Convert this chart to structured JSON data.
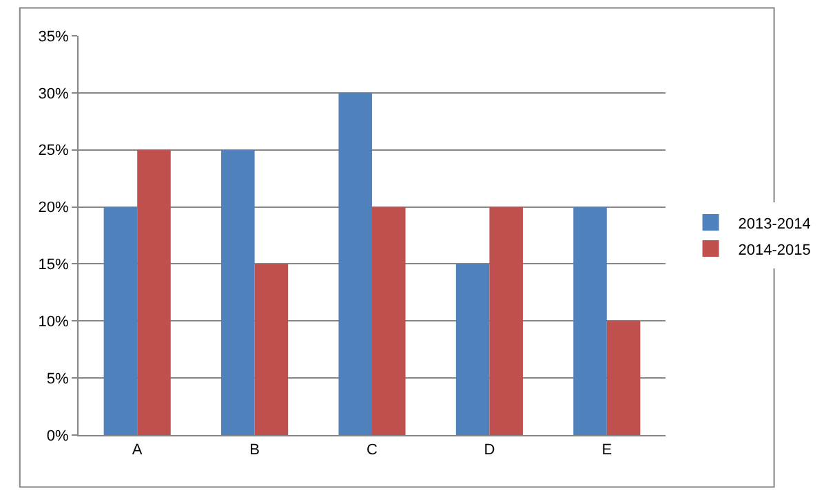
{
  "chart_data": {
    "type": "bar",
    "categories": [
      "A",
      "B",
      "C",
      "D",
      "E"
    ],
    "series": [
      {
        "name": "2013-2014",
        "color": "#4f81bd",
        "values": [
          20,
          25,
          30,
          15,
          20
        ]
      },
      {
        "name": "2014-2015",
        "color": "#c0504d",
        "values": [
          25,
          15,
          20,
          20,
          10
        ]
      }
    ],
    "ylim": [
      0,
      35
    ],
    "yticks": [
      {
        "value": 0,
        "label": "0%"
      },
      {
        "value": 5,
        "label": "5%"
      },
      {
        "value": 10,
        "label": "10%"
      },
      {
        "value": 15,
        "label": "15%"
      },
      {
        "value": 20,
        "label": "20%"
      },
      {
        "value": 25,
        "label": "25%"
      },
      {
        "value": 30,
        "label": "30%"
      },
      {
        "value": 35,
        "label": "35%"
      }
    ],
    "grid": "y",
    "legend": "right"
  }
}
